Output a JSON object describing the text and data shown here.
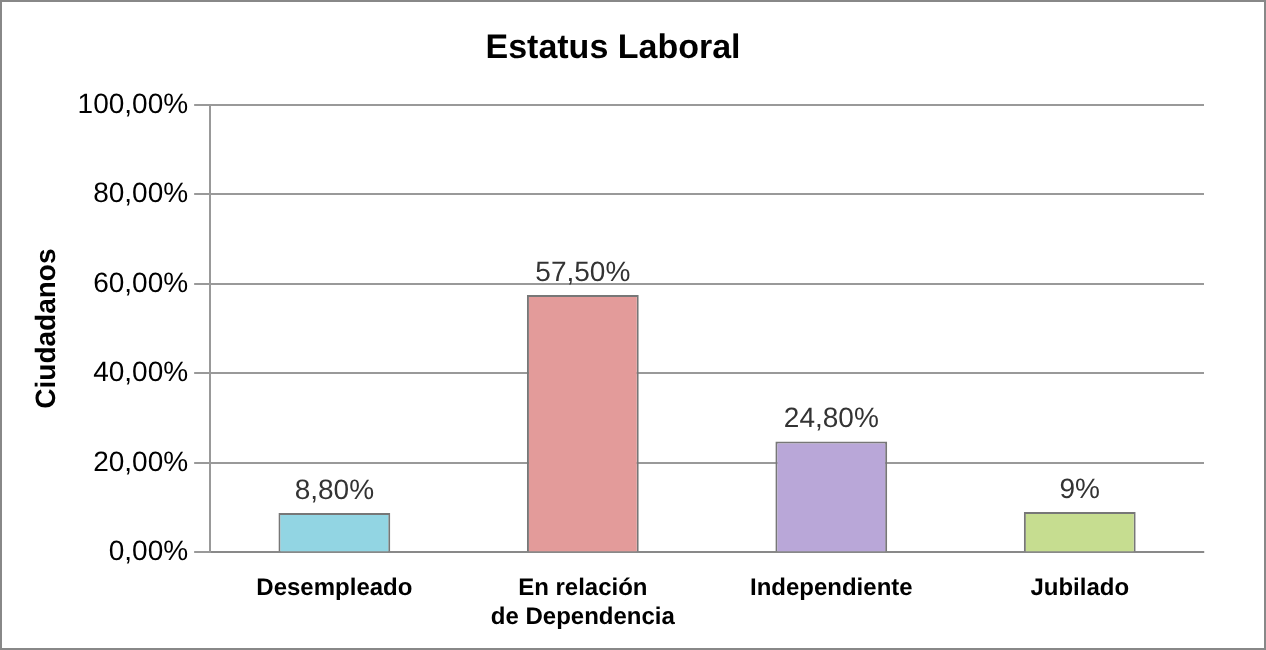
{
  "chart_data": {
    "type": "bar",
    "title": "Estatus Laboral",
    "ylabel": "Ciudadanos",
    "categories": [
      "Desempleado",
      "En relación de Dependencia",
      "Independiente",
      "Jubilado"
    ],
    "values": [
      8.8,
      57.5,
      24.8,
      9
    ],
    "colors": [
      "#92d5e3",
      "#e39b9a",
      "#b9a7d8",
      "#c6dd90"
    ],
    "value_labels": [
      "8,80%",
      "57,50%",
      "24,80%",
      "9%"
    ],
    "ylim": [
      0,
      100
    ],
    "yticks": [
      {
        "value": 0,
        "label": "0,00%"
      },
      {
        "value": 20,
        "label": "20,00%"
      },
      {
        "value": 40,
        "label": "40,00%"
      },
      {
        "value": 60,
        "label": "60,00%"
      },
      {
        "value": 80,
        "label": "80,00%"
      },
      {
        "value": 100,
        "label": "100,00%"
      }
    ],
    "grid": "y",
    "legend": false
  }
}
